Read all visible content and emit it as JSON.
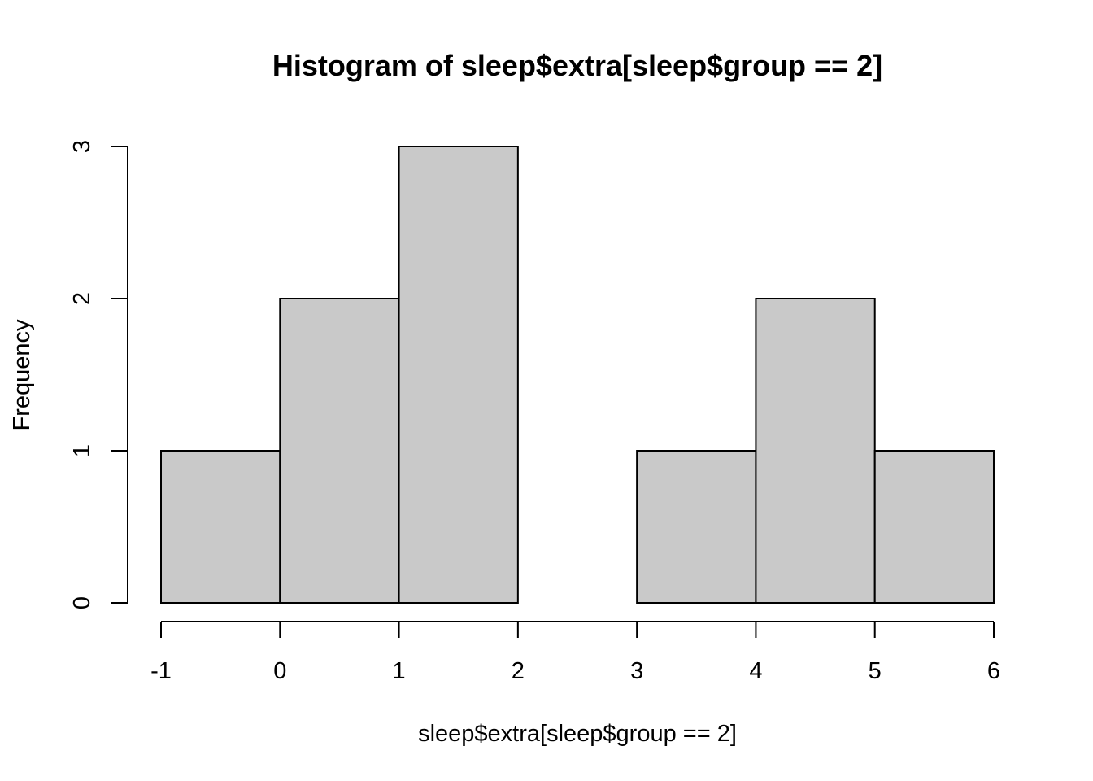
{
  "chart_data": {
    "type": "bar",
    "title": "Histogram of sleep$extra[sleep$group == 2]",
    "xlabel": "sleep$extra[sleep$group == 2]",
    "ylabel": "Frequency",
    "bins": [
      {
        "from": -1,
        "to": 0,
        "count": 1
      },
      {
        "from": 0,
        "to": 1,
        "count": 2
      },
      {
        "from": 1,
        "to": 2,
        "count": 3
      },
      {
        "from": 2,
        "to": 3,
        "count": 0
      },
      {
        "from": 3,
        "to": 4,
        "count": 1
      },
      {
        "from": 4,
        "to": 5,
        "count": 2
      },
      {
        "from": 5,
        "to": 6,
        "count": 1
      }
    ],
    "xlim": [
      -1,
      6
    ],
    "ylim": [
      0,
      3
    ],
    "x_ticks": [
      "-1",
      "0",
      "1",
      "2",
      "3",
      "4",
      "5",
      "6"
    ],
    "y_ticks": [
      "0",
      "1",
      "2",
      "3"
    ],
    "bar_color": "#c9c9c9",
    "grid": false
  }
}
